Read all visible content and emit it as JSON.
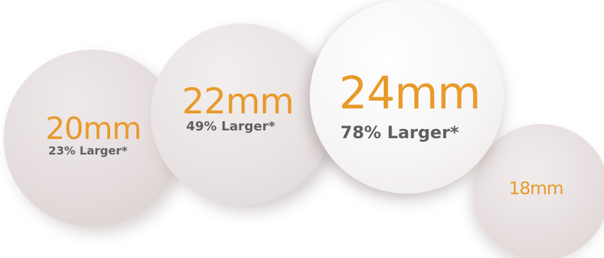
{
  "coins": {
    "c20": {
      "size": "20mm",
      "percent": "23% Larger*"
    },
    "c22": {
      "size": "22mm",
      "percent": "49% Larger*"
    },
    "c24": {
      "size": "24mm",
      "percent": "78% Larger*"
    },
    "c18": {
      "size": "18mm"
    }
  },
  "colors": {
    "size_text": "#e89a2a",
    "percent_text": "#5f5f5f",
    "background": "#ffffff"
  }
}
